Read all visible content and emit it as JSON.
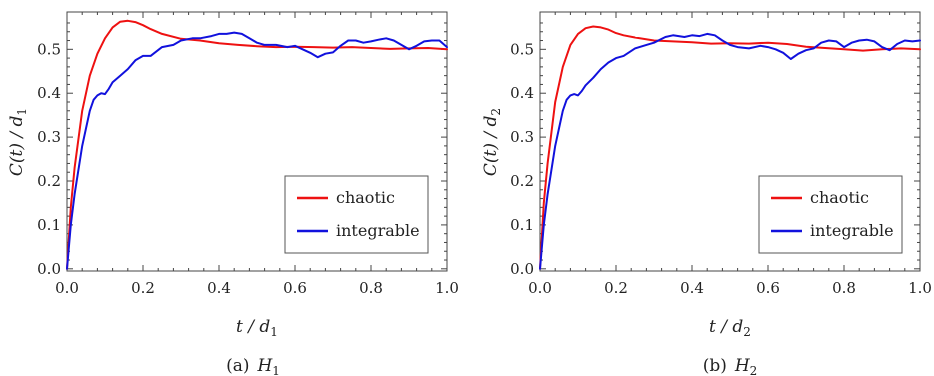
{
  "chart_data": [
    {
      "type": "line",
      "caption": "(a)",
      "caption_symbol": "H",
      "caption_sub": "1",
      "xlabel": "t / d",
      "xlabel_sub": "1",
      "ylabel": "C(t) / d",
      "ylabel_sub": "1",
      "xlim": [
        0,
        1
      ],
      "ylim": [
        -0.005,
        0.585
      ],
      "xticks": [
        "0.0",
        "0.2",
        "0.4",
        "0.6",
        "0.8",
        "1.0"
      ],
      "yticks": [
        "0.0",
        "0.1",
        "0.2",
        "0.3",
        "0.4",
        "0.5"
      ],
      "grid": false,
      "legend_position": "lower-right",
      "series": [
        {
          "name": "chaotic",
          "color": "#ee1111",
          "x": [
            0,
            0.01,
            0.02,
            0.04,
            0.06,
            0.08,
            0.1,
            0.12,
            0.14,
            0.16,
            0.18,
            0.2,
            0.22,
            0.25,
            0.3,
            0.35,
            0.4,
            0.45,
            0.5,
            0.55,
            0.6,
            0.65,
            0.7,
            0.75,
            0.8,
            0.85,
            0.9,
            0.95,
            1.0
          ],
          "y": [
            0,
            0.14,
            0.23,
            0.36,
            0.44,
            0.49,
            0.525,
            0.55,
            0.563,
            0.565,
            0.562,
            0.555,
            0.546,
            0.535,
            0.524,
            0.52,
            0.514,
            0.51,
            0.507,
            0.505,
            0.506,
            0.505,
            0.504,
            0.505,
            0.503,
            0.501,
            0.502,
            0.503,
            0.5
          ]
        },
        {
          "name": "integrable",
          "color": "#1111dd",
          "x": [
            0,
            0.01,
            0.02,
            0.04,
            0.06,
            0.07,
            0.08,
            0.09,
            0.1,
            0.11,
            0.12,
            0.14,
            0.16,
            0.18,
            0.2,
            0.22,
            0.25,
            0.28,
            0.3,
            0.33,
            0.35,
            0.38,
            0.4,
            0.42,
            0.44,
            0.46,
            0.48,
            0.5,
            0.52,
            0.55,
            0.58,
            0.6,
            0.62,
            0.64,
            0.66,
            0.68,
            0.7,
            0.72,
            0.74,
            0.76,
            0.78,
            0.8,
            0.82,
            0.84,
            0.86,
            0.88,
            0.9,
            0.92,
            0.94,
            0.96,
            0.98,
            1.0
          ],
          "y": [
            0,
            0.1,
            0.17,
            0.28,
            0.36,
            0.385,
            0.395,
            0.4,
            0.398,
            0.41,
            0.425,
            0.44,
            0.455,
            0.475,
            0.485,
            0.485,
            0.505,
            0.51,
            0.52,
            0.525,
            0.525,
            0.53,
            0.535,
            0.535,
            0.538,
            0.535,
            0.525,
            0.515,
            0.51,
            0.51,
            0.505,
            0.508,
            0.5,
            0.492,
            0.482,
            0.49,
            0.493,
            0.508,
            0.52,
            0.52,
            0.515,
            0.518,
            0.522,
            0.525,
            0.52,
            0.51,
            0.5,
            0.508,
            0.518,
            0.52,
            0.52,
            0.505
          ]
        }
      ]
    },
    {
      "type": "line",
      "caption": "(b)",
      "caption_symbol": "H",
      "caption_sub": "2",
      "xlabel": "t / d",
      "xlabel_sub": "2",
      "ylabel": "C(t) / d",
      "ylabel_sub": "2",
      "xlim": [
        0,
        1
      ],
      "ylim": [
        -0.005,
        0.585
      ],
      "xticks": [
        "0.0",
        "0.2",
        "0.4",
        "0.6",
        "0.8",
        "1.0"
      ],
      "yticks": [
        "0.0",
        "0.1",
        "0.2",
        "0.3",
        "0.4",
        "0.5"
      ],
      "grid": false,
      "legend_position": "lower-right",
      "series": [
        {
          "name": "chaotic",
          "color": "#ee1111",
          "x": [
            0,
            0.01,
            0.02,
            0.04,
            0.06,
            0.08,
            0.1,
            0.12,
            0.14,
            0.16,
            0.18,
            0.2,
            0.22,
            0.25,
            0.3,
            0.35,
            0.4,
            0.45,
            0.5,
            0.55,
            0.6,
            0.65,
            0.7,
            0.75,
            0.8,
            0.85,
            0.9,
            0.95,
            1.0
          ],
          "y": [
            0,
            0.15,
            0.24,
            0.38,
            0.46,
            0.51,
            0.535,
            0.548,
            0.552,
            0.55,
            0.545,
            0.537,
            0.532,
            0.527,
            0.52,
            0.518,
            0.516,
            0.513,
            0.514,
            0.513,
            0.515,
            0.512,
            0.506,
            0.503,
            0.5,
            0.497,
            0.5,
            0.502,
            0.5
          ]
        },
        {
          "name": "integrable",
          "color": "#1111dd",
          "x": [
            0,
            0.01,
            0.02,
            0.04,
            0.06,
            0.07,
            0.08,
            0.09,
            0.1,
            0.11,
            0.12,
            0.14,
            0.16,
            0.18,
            0.2,
            0.22,
            0.25,
            0.28,
            0.3,
            0.33,
            0.35,
            0.38,
            0.4,
            0.42,
            0.44,
            0.46,
            0.48,
            0.5,
            0.52,
            0.55,
            0.58,
            0.6,
            0.62,
            0.64,
            0.66,
            0.68,
            0.7,
            0.72,
            0.74,
            0.76,
            0.78,
            0.8,
            0.82,
            0.84,
            0.86,
            0.88,
            0.9,
            0.92,
            0.94,
            0.96,
            0.98,
            1.0
          ],
          "y": [
            0,
            0.1,
            0.17,
            0.28,
            0.36,
            0.385,
            0.395,
            0.398,
            0.395,
            0.405,
            0.418,
            0.435,
            0.455,
            0.47,
            0.48,
            0.485,
            0.502,
            0.51,
            0.515,
            0.528,
            0.532,
            0.528,
            0.532,
            0.53,
            0.535,
            0.532,
            0.52,
            0.51,
            0.505,
            0.502,
            0.508,
            0.505,
            0.5,
            0.492,
            0.478,
            0.49,
            0.498,
            0.502,
            0.515,
            0.52,
            0.518,
            0.505,
            0.515,
            0.52,
            0.522,
            0.518,
            0.505,
            0.498,
            0.512,
            0.52,
            0.518,
            0.52
          ]
        }
      ]
    }
  ]
}
